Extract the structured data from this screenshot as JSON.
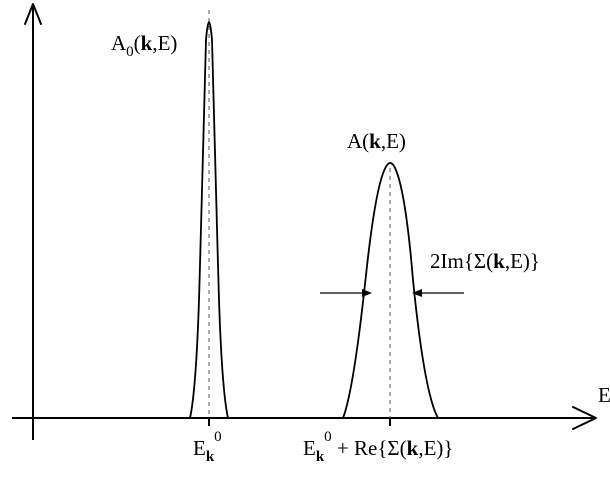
{
  "diagram": {
    "axis_label_energy": "E",
    "peak_narrow": {
      "label_main": "A",
      "label_sub": "0",
      "label_open": "(",
      "label_bold": "k",
      "label_close": ",E)"
    },
    "peak_broad": {
      "label_main": "A(",
      "label_bold": "k",
      "label_close": ",E)"
    },
    "width_annotation": {
      "prefix": "2Im{Σ(",
      "bold": "k",
      "suffix": ",E)}"
    },
    "x_label_left": {
      "main": "E",
      "sub_bold": "k",
      "sup": "0"
    },
    "x_label_right": {
      "main": "E",
      "sub_bold": "k",
      "sup": "0",
      "rest_prefix": " + Re{Σ(",
      "rest_bold": "k",
      "rest_suffix": ",E)}"
    }
  }
}
